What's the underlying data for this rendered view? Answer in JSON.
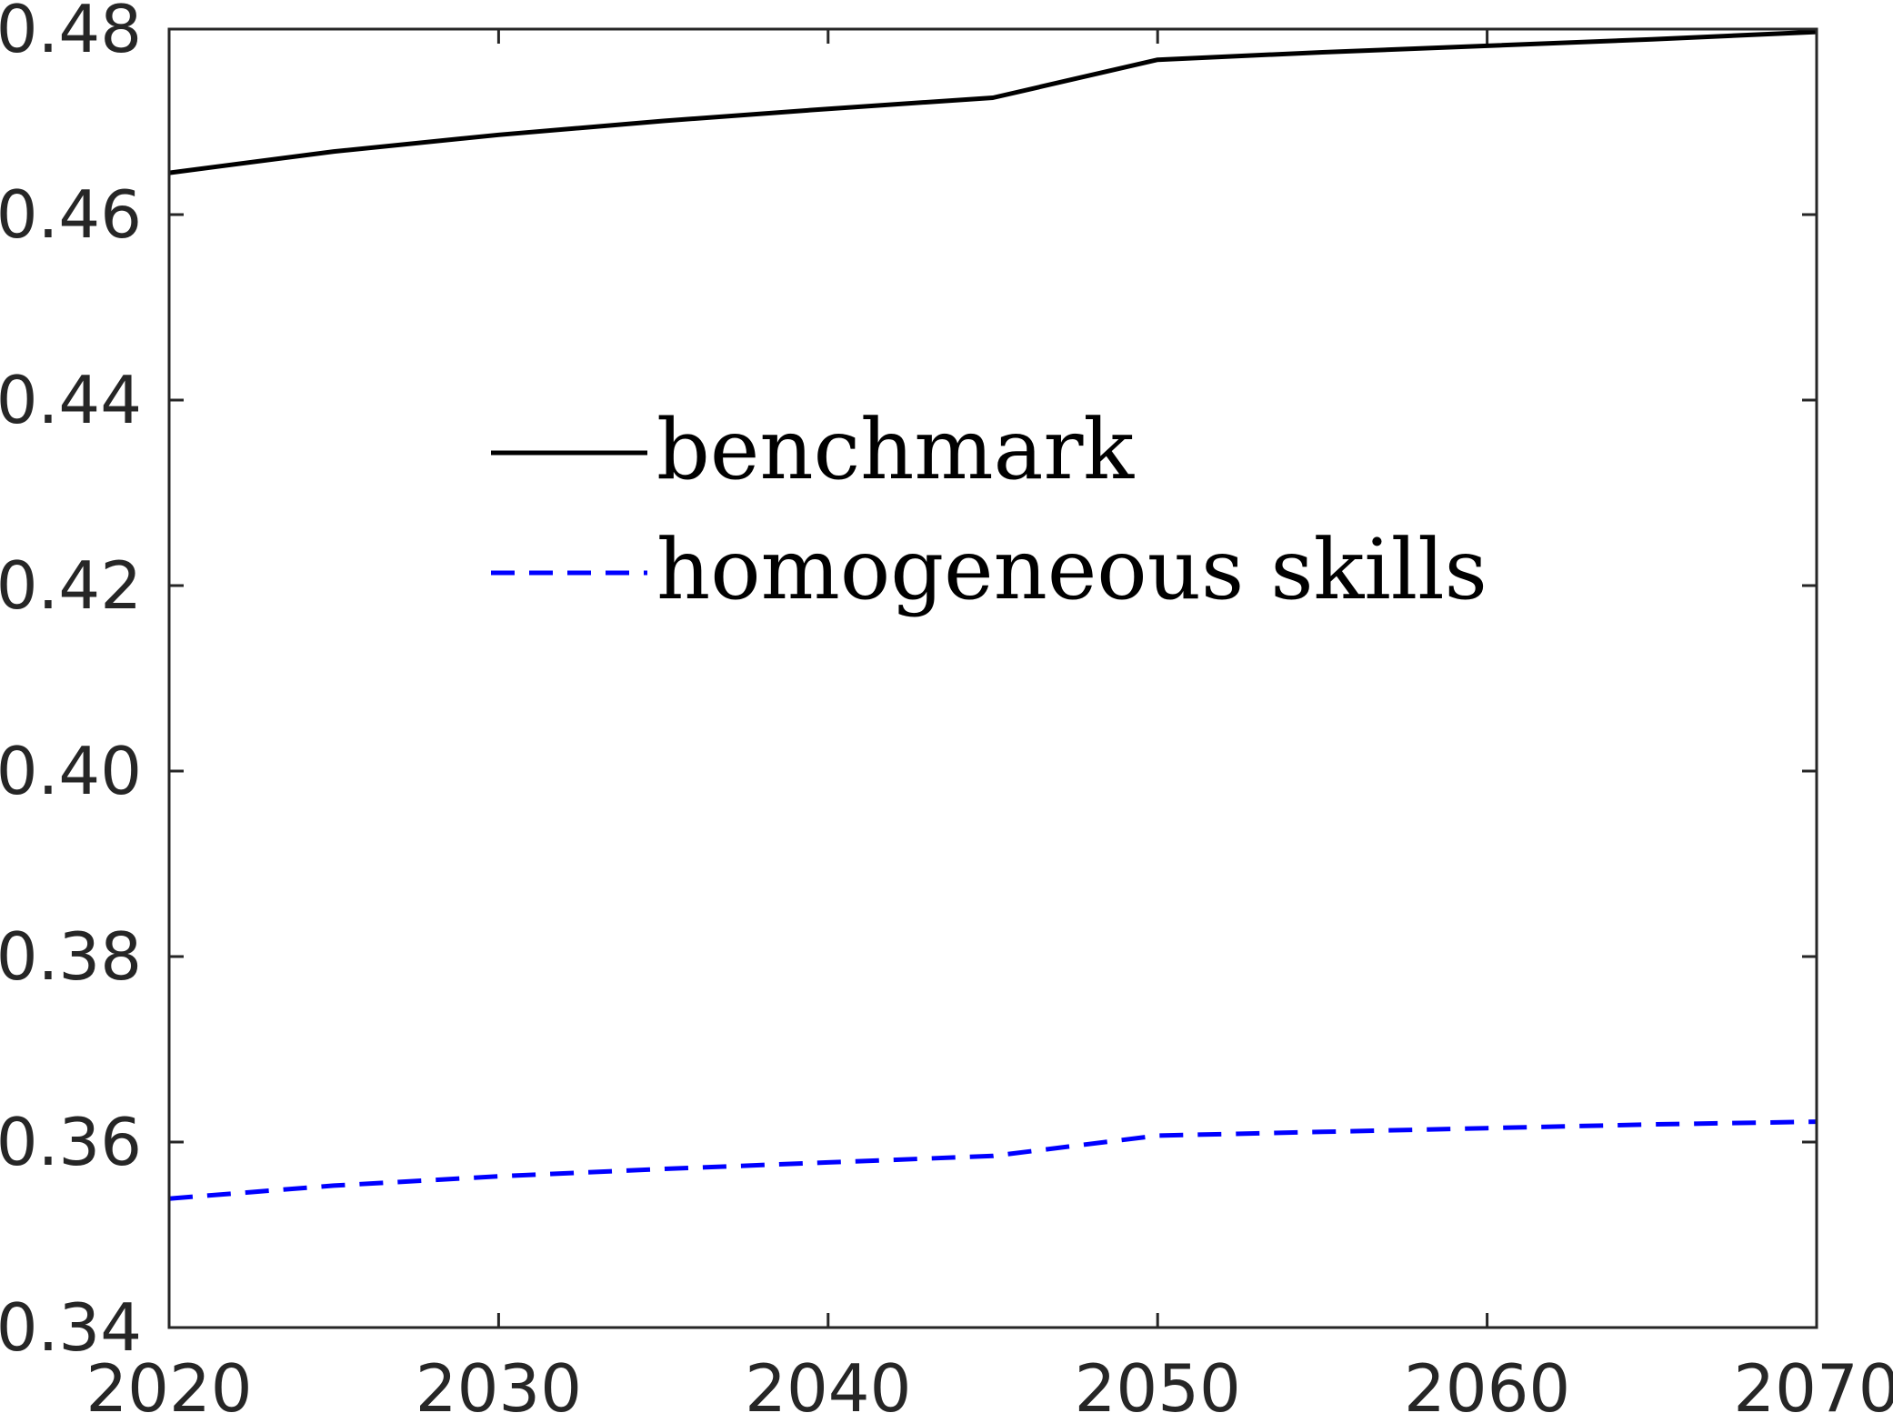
{
  "chart_data": {
    "type": "line",
    "xlim": [
      2020,
      2070
    ],
    "ylim": [
      0.34,
      0.48
    ],
    "x_ticks": [
      "2020",
      "2030",
      "2040",
      "2050",
      "2060",
      "2070"
    ],
    "y_ticks": [
      "0.34",
      "0.36",
      "0.38",
      "0.40",
      "0.42",
      "0.44",
      "0.46",
      "0.48"
    ],
    "grid": false,
    "legend_position": "upper-left-center",
    "series": [
      {
        "name": "benchmark",
        "color": "#000000",
        "style": "solid",
        "x": [
          2020,
          2025,
          2030,
          2035,
          2040,
          2045,
          2050,
          2055,
          2060,
          2065,
          2070
        ],
        "y": [
          0.4645,
          0.4668,
          0.4686,
          0.4701,
          0.4714,
          0.4726,
          0.4767,
          0.4775,
          0.4782,
          0.4789,
          0.4797
        ]
      },
      {
        "name": "homogeneous skills",
        "color": "#0000ff",
        "style": "dashed",
        "x": [
          2020,
          2025,
          2030,
          2035,
          2040,
          2045,
          2050,
          2055,
          2060,
          2065,
          2070
        ],
        "y": [
          0.3539,
          0.3553,
          0.3563,
          0.3571,
          0.3578,
          0.3585,
          0.3607,
          0.3611,
          0.3615,
          0.3619,
          0.3622
        ]
      }
    ]
  }
}
